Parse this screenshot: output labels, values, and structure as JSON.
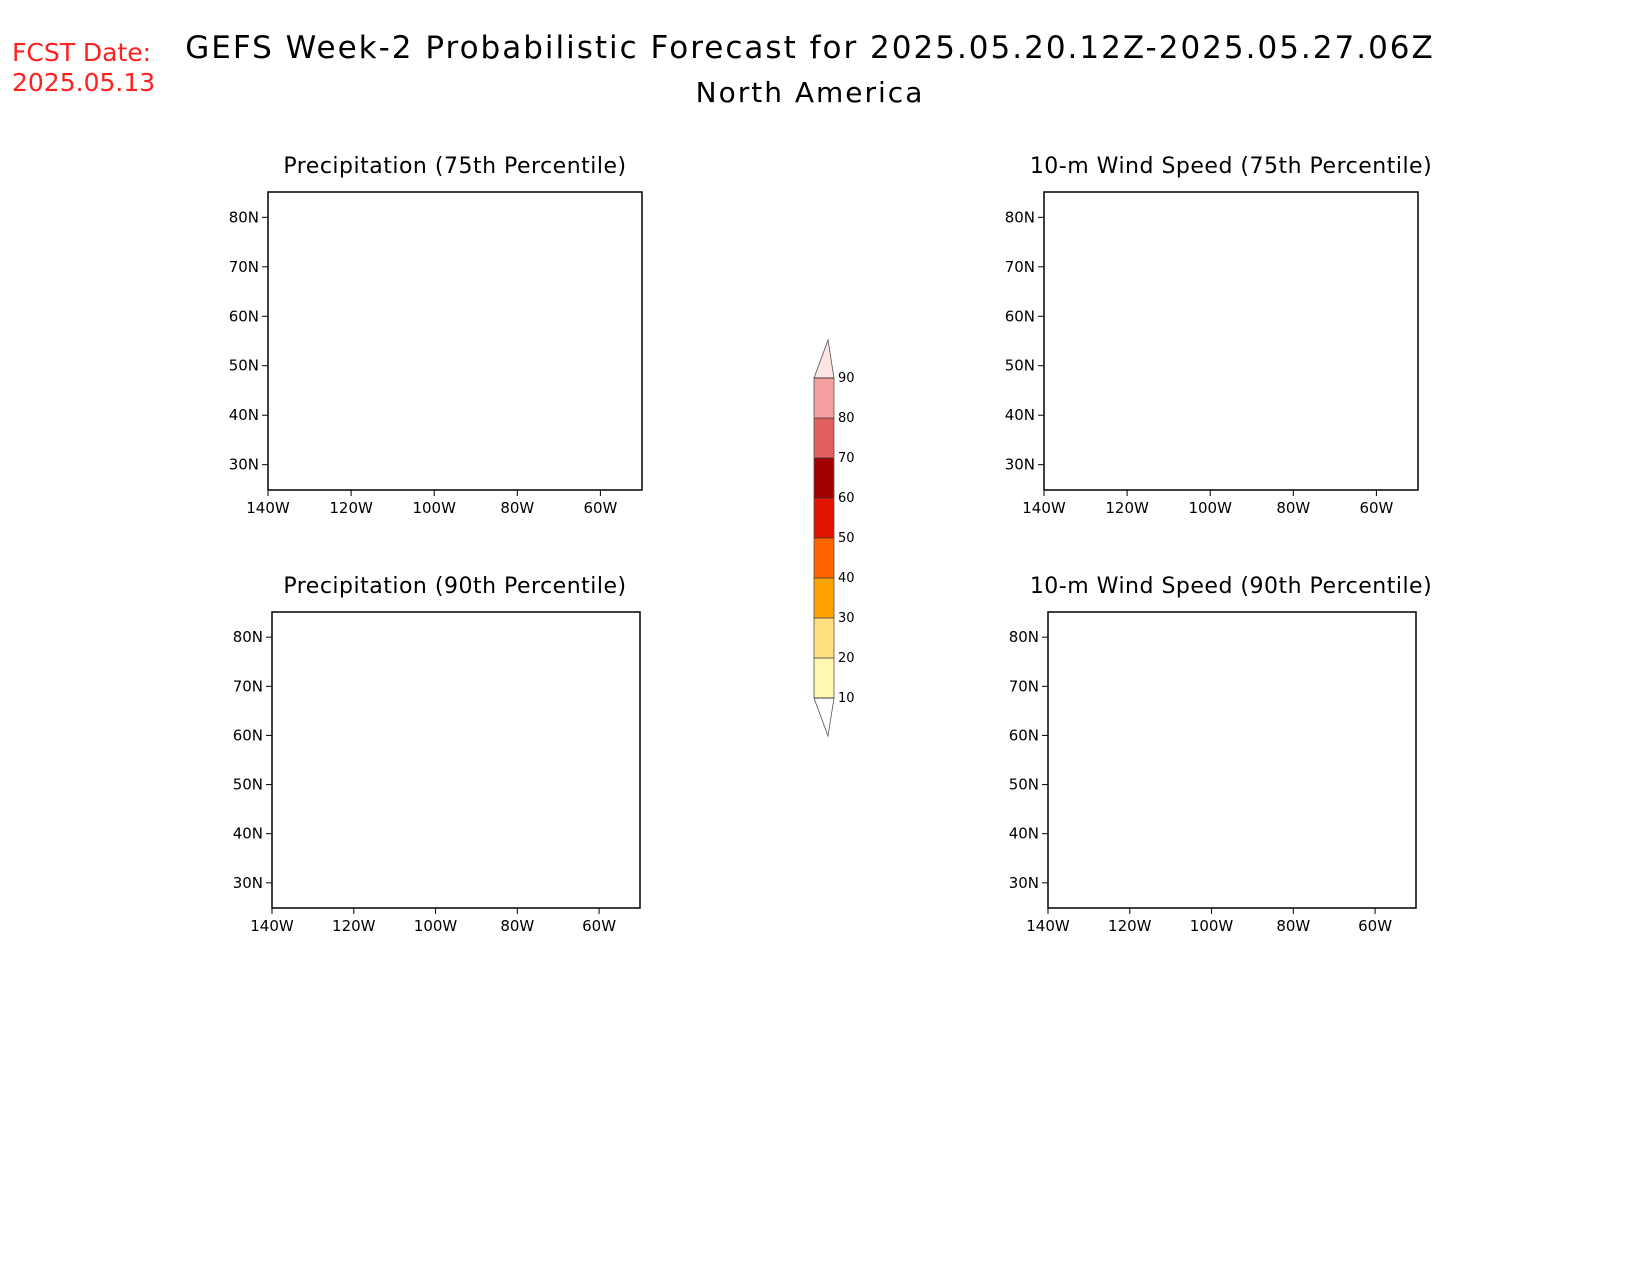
{
  "fcst": {
    "line1": "FCST Date:",
    "line2": "2025.05.13"
  },
  "title": {
    "line1": "GEFS Week-2 Probabilistic Forecast for 2025.05.20.12Z-2025.05.27.06Z",
    "line2": "North America"
  },
  "panels": [
    {
      "title": "Precipitation (75th Percentile)",
      "fill": "precip75"
    },
    {
      "title": "10-m Wind Speed (75th Percentile)",
      "fill": "wind75"
    },
    {
      "title": "Precipitation (90th Percentile)",
      "fill": "precip90"
    },
    {
      "title": "10-m Wind Speed (90th Percentile)",
      "fill": "wind90"
    }
  ],
  "axes": {
    "lat_labels": [
      "80N",
      "70N",
      "60N",
      "50N",
      "40N",
      "30N"
    ],
    "lon_labels": [
      "140W",
      "120W",
      "100W",
      "80W",
      "60W"
    ]
  },
  "colorbar": {
    "levels": [
      "10",
      "20",
      "30",
      "40",
      "50",
      "60",
      "70",
      "80",
      "90"
    ],
    "colors": [
      "#fff8b0",
      "#ffe080",
      "#ffa200",
      "#ff6400",
      "#e01400",
      "#a00000",
      "#e06060",
      "#f4a0a0",
      "#ffe4e4"
    ]
  }
}
